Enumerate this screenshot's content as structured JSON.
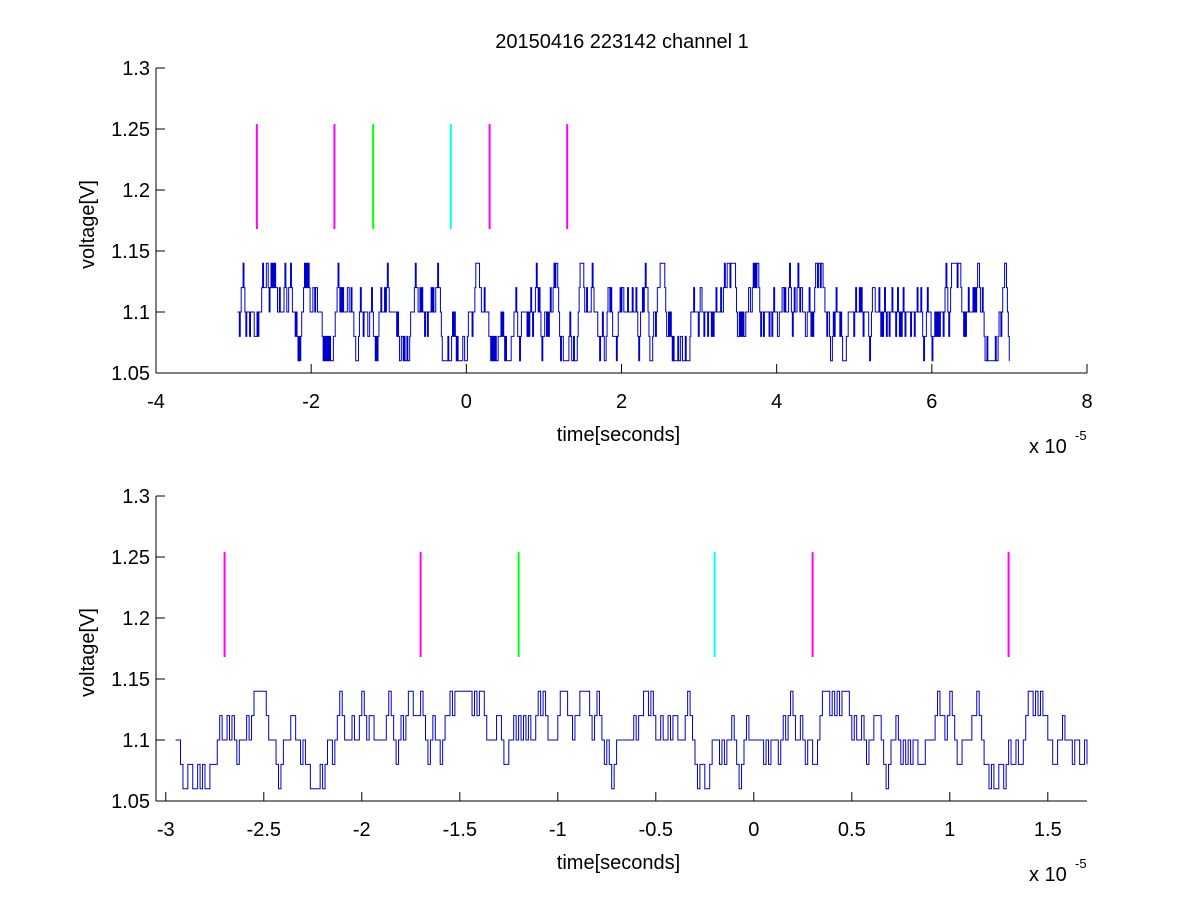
{
  "figure": {
    "title": "20150416 223142 channel 1",
    "background": "#ffffff"
  },
  "colors": {
    "signal": "#0000cc",
    "marker_magenta": "#ff00ff",
    "marker_green": "#00ff00",
    "marker_cyan": "#00ffff"
  },
  "chart_data": [
    {
      "type": "line",
      "title": "20150416 223142 channel 1",
      "xlabel": "time[seconds]",
      "ylabel": "voltage[V]",
      "x_multiplier": "x 10",
      "x_exponent": "-5",
      "xlim": [
        -4,
        8
      ],
      "ylim": [
        1.05,
        1.3
      ],
      "xticks": [
        -4,
        -2,
        0,
        2,
        4,
        6,
        8
      ],
      "xtick_labels": [
        "-4",
        "-2",
        "0",
        "2",
        "4",
        "6",
        "8"
      ],
      "yticks": [
        1.05,
        1.1,
        1.15,
        1.2,
        1.25,
        1.3
      ],
      "ytick_labels": [
        "1.05",
        "1.1",
        "1.15",
        "1.2",
        "1.25",
        "1.3"
      ],
      "grid": false,
      "series": [
        {
          "style": "stairs",
          "color": "#0000cc",
          "x_start": -2.95,
          "x_end": 7.0,
          "levels": [
            1.06,
            1.08,
            1.1,
            1.12,
            1.14
          ],
          "baseline": 1.1,
          "note_values": "digitized noise toggling between quantized levels"
        }
      ],
      "markers": [
        {
          "x": -2.7,
          "y_from": 1.168,
          "y_to": 1.254,
          "color": "#ff00ff"
        },
        {
          "x": -1.7,
          "y_from": 1.168,
          "y_to": 1.254,
          "color": "#ff00ff"
        },
        {
          "x": -1.2,
          "y_from": 1.168,
          "y_to": 1.254,
          "color": "#00ff00"
        },
        {
          "x": -0.2,
          "y_from": 1.168,
          "y_to": 1.254,
          "color": "#00ffff"
        },
        {
          "x": 0.3,
          "y_from": 1.168,
          "y_to": 1.254,
          "color": "#ff00ff"
        },
        {
          "x": 1.3,
          "y_from": 1.168,
          "y_to": 1.254,
          "color": "#ff00ff"
        }
      ]
    },
    {
      "type": "line",
      "title": "",
      "xlabel": "time[seconds]",
      "ylabel": "voltage[V]",
      "x_multiplier": "x 10",
      "x_exponent": "-5",
      "xlim": [
        -3.05,
        1.7
      ],
      "ylim": [
        1.05,
        1.3
      ],
      "xticks": [
        -3,
        -2.5,
        -2,
        -1.5,
        -1,
        -0.5,
        0,
        0.5,
        1,
        1.5
      ],
      "xtick_labels": [
        "-3",
        "-2.5",
        "-2",
        "-1.5",
        "-1",
        "-0.5",
        "0",
        "0.5",
        "1",
        "1.5"
      ],
      "yticks": [
        1.05,
        1.1,
        1.15,
        1.2,
        1.25,
        1.3
      ],
      "ytick_labels": [
        "1.05",
        "1.1",
        "1.15",
        "1.2",
        "1.25",
        "1.3"
      ],
      "grid": false,
      "series": [
        {
          "style": "stairs",
          "color": "#0000cc",
          "x_start": -2.95,
          "x_end": 1.7,
          "levels": [
            1.06,
            1.08,
            1.1,
            1.12,
            1.14
          ],
          "baseline": 1.1,
          "note_values": "digitized noise toggling between quantized levels"
        }
      ],
      "markers": [
        {
          "x": -2.7,
          "y_from": 1.168,
          "y_to": 1.254,
          "color": "#ff00ff"
        },
        {
          "x": -1.7,
          "y_from": 1.168,
          "y_to": 1.254,
          "color": "#ff00ff"
        },
        {
          "x": -1.2,
          "y_from": 1.168,
          "y_to": 1.254,
          "color": "#00ff00"
        },
        {
          "x": -0.2,
          "y_from": 1.168,
          "y_to": 1.254,
          "color": "#00ffff"
        },
        {
          "x": 0.3,
          "y_from": 1.168,
          "y_to": 1.254,
          "color": "#ff00ff"
        },
        {
          "x": 1.3,
          "y_from": 1.168,
          "y_to": 1.254,
          "color": "#ff00ff"
        }
      ]
    }
  ]
}
